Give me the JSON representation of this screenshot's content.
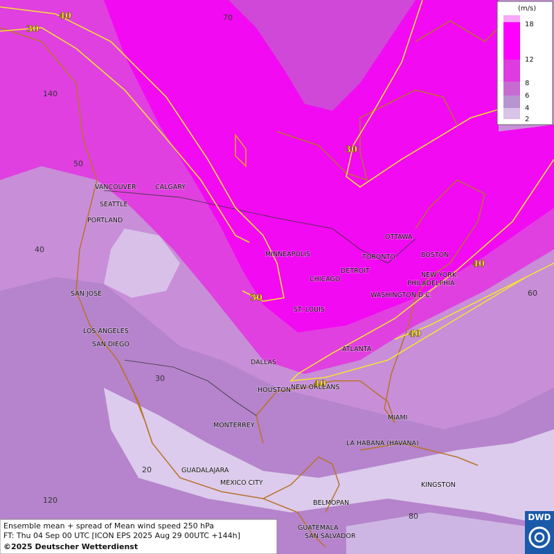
{
  "legend": {
    "unit": "(m/s)",
    "ticks": [
      "18",
      "12",
      "8",
      "6",
      "4",
      "2"
    ]
  },
  "grid_labels": [
    "70",
    "140",
    "50",
    "40",
    "60",
    "30",
    "20",
    "120",
    "80"
  ],
  "contour_labels": [
    "40",
    "30",
    "30",
    "30",
    "40",
    "40",
    "40"
  ],
  "cities": [
    "VANCOUVER",
    "CALGARY",
    "SEATTLE",
    "PORTLAND",
    "MINNEAPOLIS",
    "TORONTO",
    "OTTAWA",
    "BOSTON",
    "DETROIT",
    "CHICAGO",
    "NEW YORK",
    "PHILADELPHIA",
    "WASHINGTON D.C.",
    "ST. LOUIS",
    "SAN JOSE",
    "LOS ANGELES",
    "SAN DIEGO",
    "DALLAS",
    "ATLANTA",
    "HOUSTON",
    "NEW ORLEANS",
    "MIAMI",
    "MONTERREY",
    "LA HABANA (HAVANA)",
    "GUADALAJARA",
    "MEXICO CITY",
    "KINGSTON",
    "BELMOPAN",
    "GUATEMALA",
    "SAN SALVADOR"
  ],
  "footer": {
    "line1": "Ensemble mean + spread of Mean wind speed 250 hPa",
    "line2": "FT: Thu 04 Sep 00 UTC [ICON EPS 2025 Aug 29 00UTC +144h]",
    "line3": "©2025 Deutscher Wetterdienst"
  },
  "logo": "DWD"
}
